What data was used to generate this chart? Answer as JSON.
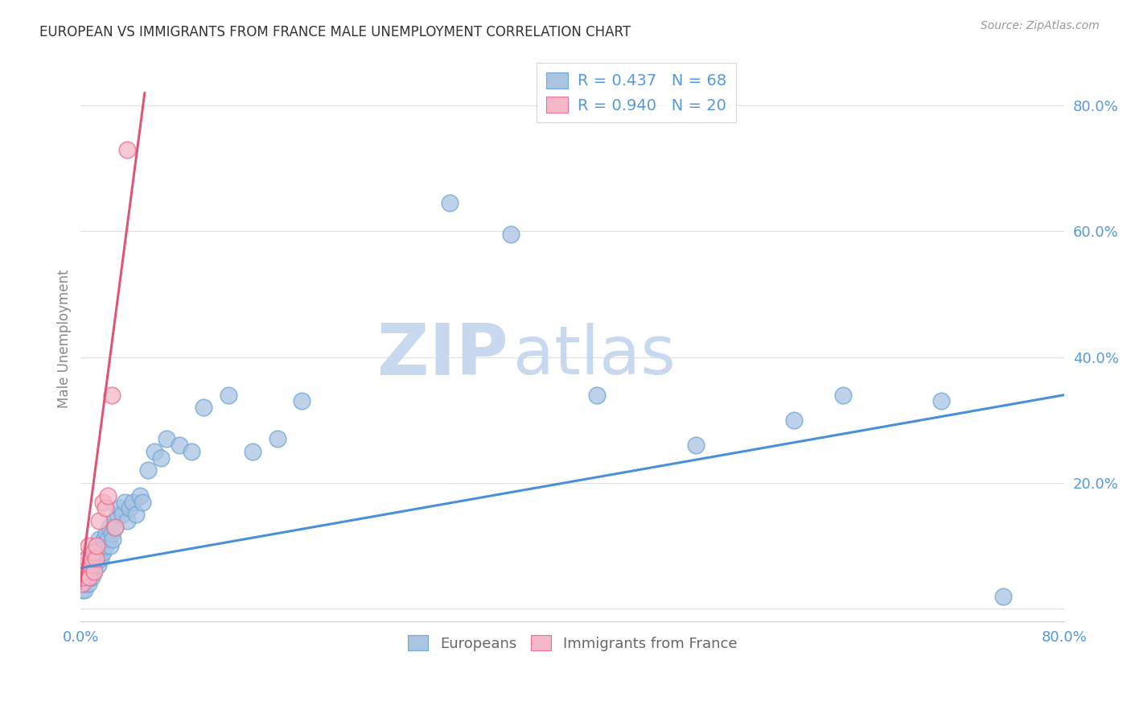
{
  "title": "EUROPEAN VS IMMIGRANTS FROM FRANCE MALE UNEMPLOYMENT CORRELATION CHART",
  "source": "Source: ZipAtlas.com",
  "ylabel": "Male Unemployment",
  "xlim": [
    0.0,
    0.8
  ],
  "ylim": [
    -0.02,
    0.88
  ],
  "ytick_vals": [
    0.0,
    0.2,
    0.4,
    0.6,
    0.8
  ],
  "ytick_labels": [
    "",
    "20.0%",
    "40.0%",
    "60.0%",
    "80.0%"
  ],
  "xtick_vals": [
    0.0,
    0.8
  ],
  "xtick_labels": [
    "0.0%",
    "80.0%"
  ],
  "european_color": "#aac4e2",
  "european_edge": "#6fa8d8",
  "immigrant_color": "#f5b8c8",
  "immigrant_edge": "#e87090",
  "trend_eu_color": "#4a90d9",
  "trend_fr_color": "#e05575",
  "watermark_zip_color": "#c8d8ee",
  "watermark_atlas_color": "#c8d8ee",
  "background_color": "#ffffff",
  "grid_color": "#e0e0e0",
  "tick_color": "#5599dd",
  "title_color": "#333333",
  "source_color": "#999999",
  "ylabel_color": "#888888",
  "eu_x": [
    0.001,
    0.001,
    0.002,
    0.002,
    0.003,
    0.003,
    0.004,
    0.004,
    0.005,
    0.005,
    0.006,
    0.006,
    0.007,
    0.007,
    0.008,
    0.008,
    0.009,
    0.009,
    0.01,
    0.01,
    0.011,
    0.012,
    0.013,
    0.014,
    0.015,
    0.015,
    0.016,
    0.017,
    0.018,
    0.019,
    0.02,
    0.021,
    0.022,
    0.023,
    0.024,
    0.025,
    0.026,
    0.027,
    0.028,
    0.03,
    0.032,
    0.034,
    0.036,
    0.038,
    0.04,
    0.042,
    0.045,
    0.048,
    0.05,
    0.055,
    0.06,
    0.065,
    0.07,
    0.08,
    0.09,
    0.1,
    0.12,
    0.14,
    0.16,
    0.18,
    0.3,
    0.35,
    0.42,
    0.5,
    0.58,
    0.62,
    0.7,
    0.75
  ],
  "eu_y": [
    0.03,
    0.05,
    0.04,
    0.06,
    0.03,
    0.05,
    0.04,
    0.07,
    0.05,
    0.08,
    0.04,
    0.06,
    0.05,
    0.07,
    0.06,
    0.09,
    0.05,
    0.07,
    0.06,
    0.08,
    0.07,
    0.08,
    0.09,
    0.07,
    0.09,
    0.11,
    0.08,
    0.1,
    0.09,
    0.11,
    0.1,
    0.12,
    0.11,
    0.13,
    0.1,
    0.12,
    0.11,
    0.14,
    0.13,
    0.15,
    0.16,
    0.15,
    0.17,
    0.14,
    0.16,
    0.17,
    0.15,
    0.18,
    0.17,
    0.22,
    0.25,
    0.24,
    0.27,
    0.26,
    0.25,
    0.32,
    0.34,
    0.25,
    0.27,
    0.33,
    0.645,
    0.595,
    0.34,
    0.26,
    0.3,
    0.34,
    0.33,
    0.02
  ],
  "fr_x": [
    0.001,
    0.002,
    0.003,
    0.004,
    0.005,
    0.006,
    0.007,
    0.008,
    0.009,
    0.01,
    0.011,
    0.012,
    0.013,
    0.015,
    0.018,
    0.02,
    0.022,
    0.025,
    0.028,
    0.038
  ],
  "fr_y": [
    0.04,
    0.05,
    0.06,
    0.07,
    0.08,
    0.1,
    0.05,
    0.07,
    0.08,
    0.09,
    0.06,
    0.08,
    0.1,
    0.14,
    0.17,
    0.16,
    0.18,
    0.34,
    0.13,
    0.73
  ],
  "eu_trend_x": [
    0.0,
    0.8
  ],
  "eu_trend_y": [
    0.065,
    0.34
  ],
  "fr_trend_x": [
    -0.002,
    0.052
  ],
  "fr_trend_y": [
    0.015,
    0.82
  ]
}
